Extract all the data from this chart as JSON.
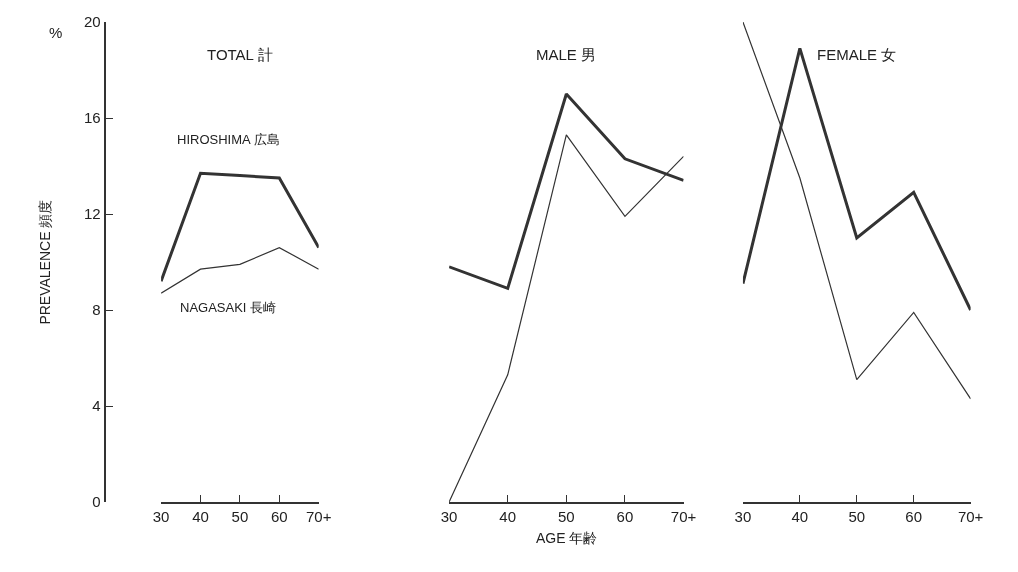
{
  "chart_data": [
    {
      "type": "line",
      "title": "TOTAL 計",
      "ylabel": "PREVALENCE 頻度",
      "annotations": [
        "%"
      ],
      "categories": [
        "30",
        "40",
        "50",
        "60",
        "70+"
      ],
      "ylim": [
        0,
        20
      ],
      "yticks": [
        0,
        4,
        8,
        12,
        16,
        20
      ],
      "legend": false,
      "marker": "none",
      "line_style": "solid",
      "series": [
        {
          "name": "HIROSHIMA 広島",
          "color": "#333333",
          "values": [
            9.2,
            13.7,
            13.6,
            13.5,
            10.6
          ]
        },
        {
          "name": "NAGASAKI 長崎",
          "color": "#333333",
          "values": [
            8.7,
            9.7,
            9.9,
            10.6,
            9.7
          ]
        }
      ]
    },
    {
      "type": "line",
      "title": "MALE 男",
      "xlabel": "AGE 年齢",
      "categories": [
        "30",
        "40",
        "50",
        "60",
        "70+"
      ],
      "ylim": [
        0,
        20
      ],
      "tick_labels": "x",
      "legend": false,
      "marker": "none",
      "line_style": "solid",
      "series": [
        {
          "color": "#333333",
          "values": [
            9.8,
            8.9,
            17.0,
            14.3,
            13.4
          ]
        },
        {
          "color": "#333333",
          "values": [
            0.0,
            5.3,
            15.3,
            11.9,
            14.4
          ]
        }
      ]
    },
    {
      "type": "line",
      "title": "FEMALE 女",
      "categories": [
        "30",
        "40",
        "50",
        "60",
        "70+"
      ],
      "ylim": [
        0,
        20
      ],
      "tick_labels": "x",
      "legend": false,
      "marker": "none",
      "line_style": "solid",
      "series": [
        {
          "color": "#333333",
          "values": [
            9.1,
            18.9,
            11.0,
            12.9,
            8.0
          ]
        },
        {
          "color": "#333333",
          "values": [
            20.0,
            13.5,
            5.1,
            7.9,
            4.3
          ]
        }
      ]
    }
  ]
}
